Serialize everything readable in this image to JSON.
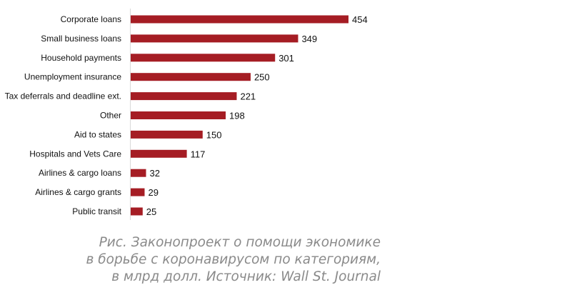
{
  "chart_data": {
    "type": "bar",
    "orientation": "horizontal",
    "categories": [
      "Corporate loans",
      "Small business loans",
      "Household payments",
      "Unemployment insurance",
      "Tax deferrals and deadline ext.",
      "Other",
      "Aid to states",
      "Hospitals and Vets Care",
      "Airlines & cargo loans",
      "Airlines & cargo grants",
      "Public transit"
    ],
    "values": [
      454,
      349,
      301,
      250,
      221,
      198,
      150,
      117,
      32,
      29,
      25
    ],
    "data_labels": true,
    "grid": false,
    "bar_color": "#a51d24",
    "title": "",
    "xlabel": "",
    "ylabel": ""
  },
  "caption": {
    "lines": [
      "Рис. Законопроект о помощи экономике",
      "в борьбе с коронавирусом по категориям,",
      "в млрд долл. Источник: Wall St. Journal"
    ]
  }
}
